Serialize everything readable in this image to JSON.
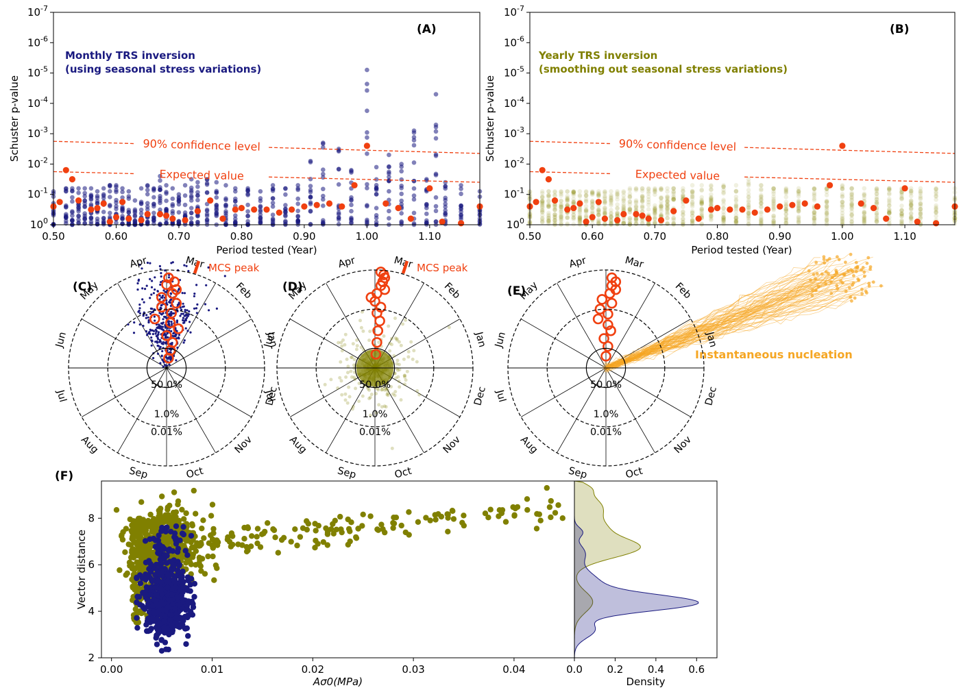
{
  "figure": {
    "panel_labels": [
      "(A)",
      "(B)",
      "(C)",
      "(D)",
      "(E)",
      "(F)"
    ]
  },
  "colors": {
    "monthly": "#1a1a80",
    "yearly": "#808000",
    "observed": "#f04010",
    "mcs": "#f04010",
    "nucleation": "#f5a623"
  },
  "chart_data": [
    {
      "id": "A",
      "type": "scatter",
      "annotation": "Monthly TRS inversion\n(using seasonal stress variations)",
      "xlabel": "Period tested (Year)",
      "ylabel": "Schuster p-value",
      "xlim": [
        0.5,
        1.18
      ],
      "ylim": [
        1,
        1e-07
      ],
      "y_scale": "log-inverted",
      "x_ticks": [
        "0.50",
        "0.60",
        "0.70",
        "0.80",
        "0.90",
        "1.00",
        "1.10"
      ],
      "y_ticks": [
        "10^0",
        "10^-1",
        "10^-2",
        "10^-3",
        "10^-4",
        "10^-5",
        "10^-6",
        "10^-7"
      ],
      "lines": [
        {
          "label": "90% confidence level",
          "x": [
            0.5,
            1.18
          ],
          "log10_p": [
            -2.75,
            -2.35
          ]
        },
        {
          "label": "Expected value",
          "x": [
            0.5,
            1.18
          ],
          "log10_p": [
            -1.75,
            -1.4
          ]
        }
      ],
      "series": [
        {
          "color": "monthly",
          "periods": [
            0.5,
            0.52,
            0.53,
            0.54,
            0.55,
            0.56,
            0.57,
            0.58,
            0.59,
            0.6,
            0.61,
            0.62,
            0.63,
            0.64,
            0.65,
            0.66,
            0.67,
            0.68,
            0.69,
            0.7,
            0.71,
            0.72,
            0.73,
            0.745,
            0.76,
            0.775,
            0.79,
            0.81,
            0.83,
            0.85,
            0.87,
            0.89,
            0.91,
            0.93,
            0.955,
            0.975,
            1.0,
            1.015,
            1.035,
            1.055,
            1.075,
            1.095,
            1.11,
            1.125,
            1.15,
            1.18
          ],
          "max_log10_p": [
            -1.1,
            -1.2,
            -1.2,
            -1.2,
            -1.2,
            -1.2,
            -1.1,
            -1.2,
            -1.3,
            -1.3,
            -1.2,
            -1.1,
            -0.8,
            -1.2,
            -1.3,
            -1.2,
            -1.6,
            -1.3,
            -1.2,
            -1.0,
            -1.3,
            -1.5,
            -1.4,
            -1.5,
            -1.4,
            -1.3,
            -1.2,
            -1.2,
            -1.1,
            -1.3,
            -1.2,
            -1.3,
            -2.1,
            -2.7,
            -2.5,
            -1.8,
            -5.1,
            -1.9,
            -2.3,
            -2.0,
            -3.1,
            -1.5,
            -4.3,
            -1.4,
            -1.3,
            -1.1
          ]
        },
        {
          "name": "observed",
          "color": "observed",
          "periods": [
            0.5,
            0.51,
            0.52,
            0.53,
            0.54,
            0.56,
            0.57,
            0.58,
            0.59,
            0.6,
            0.61,
            0.62,
            0.64,
            0.65,
            0.67,
            0.68,
            0.69,
            0.71,
            0.73,
            0.75,
            0.77,
            0.79,
            0.8,
            0.82,
            0.84,
            0.86,
            0.88,
            0.9,
            0.92,
            0.94,
            0.96,
            0.98,
            1.0,
            1.03,
            1.05,
            1.07,
            1.1,
            1.12,
            1.15,
            1.18
          ],
          "log10_p": [
            -0.6,
            -0.75,
            -1.8,
            -1.5,
            -0.8,
            -0.5,
            -0.55,
            -0.7,
            -0.1,
            -0.25,
            -0.75,
            -0.2,
            -0.15,
            -0.35,
            -0.35,
            -0.3,
            -0.2,
            -0.15,
            -0.45,
            -0.8,
            -0.2,
            -0.5,
            -0.55,
            -0.5,
            -0.5,
            -0.4,
            -0.5,
            -0.6,
            -0.65,
            -0.7,
            -0.6,
            -1.3,
            -2.6,
            -0.7,
            -0.55,
            -0.2,
            -1.2,
            -0.1,
            -0.05,
            -0.6
          ]
        }
      ]
    },
    {
      "id": "B",
      "type": "scatter",
      "annotation": "Yearly TRS inversion\n(smoothing out seasonal stress variations)",
      "xlabel": "Period tested (Year)",
      "ylabel": "Schuster p-value",
      "xlim": [
        0.5,
        1.18
      ],
      "ylim": [
        1,
        1e-07
      ],
      "y_scale": "log-inverted",
      "x_ticks": [
        "0.50",
        "0.60",
        "0.70",
        "0.80",
        "0.90",
        "1.00",
        "1.10"
      ],
      "y_ticks": [
        "10^0",
        "10^-1",
        "10^-2",
        "10^-3",
        "10^-4",
        "10^-5",
        "10^-6",
        "10^-7"
      ],
      "lines": [
        {
          "label": "90% confidence level",
          "x": [
            0.5,
            1.18
          ],
          "log10_p": [
            -2.75,
            -2.35
          ]
        },
        {
          "label": "Expected value",
          "x": [
            0.5,
            1.18
          ],
          "log10_p": [
            -1.75,
            -1.4
          ]
        }
      ],
      "series": [
        {
          "color": "yearly",
          "periods": [
            0.5,
            0.52,
            0.53,
            0.54,
            0.55,
            0.56,
            0.57,
            0.58,
            0.59,
            0.6,
            0.61,
            0.62,
            0.63,
            0.64,
            0.65,
            0.66,
            0.67,
            0.68,
            0.69,
            0.7,
            0.71,
            0.72,
            0.73,
            0.745,
            0.76,
            0.775,
            0.79,
            0.81,
            0.83,
            0.85,
            0.87,
            0.89,
            0.91,
            0.93,
            0.955,
            0.975,
            1.0,
            1.015,
            1.035,
            1.055,
            1.075,
            1.095,
            1.11,
            1.125,
            1.15,
            1.18
          ],
          "max_log10_p": [
            -1.1,
            -1.1,
            -1.1,
            -1.1,
            -1.1,
            -1.1,
            -1.1,
            -1.1,
            -1.1,
            -1.1,
            -1.1,
            -1.1,
            -1.1,
            -1.1,
            -1.1,
            -1.2,
            -1.2,
            -1.2,
            -1.2,
            -1.2,
            -1.2,
            -1.2,
            -1.2,
            -1.2,
            -1.3,
            -1.3,
            -1.3,
            -1.3,
            -1.3,
            -1.5,
            -1.3,
            -1.2,
            -1.2,
            -1.2,
            -1.2,
            -1.2,
            -1.3,
            -1.2,
            -1.2,
            -1.2,
            -1.2,
            -1.2,
            -1.2,
            -1.2,
            -1.2,
            -1.2
          ]
        },
        {
          "name": "observed",
          "color": "observed",
          "periods": [
            0.5,
            0.51,
            0.52,
            0.53,
            0.54,
            0.56,
            0.57,
            0.58,
            0.59,
            0.6,
            0.61,
            0.62,
            0.64,
            0.65,
            0.67,
            0.68,
            0.69,
            0.71,
            0.73,
            0.75,
            0.77,
            0.79,
            0.8,
            0.82,
            0.84,
            0.86,
            0.88,
            0.9,
            0.92,
            0.94,
            0.96,
            0.98,
            1.0,
            1.03,
            1.05,
            1.07,
            1.1,
            1.12,
            1.15,
            1.18
          ],
          "log10_p": [
            -0.6,
            -0.75,
            -1.8,
            -1.5,
            -0.8,
            -0.5,
            -0.55,
            -0.7,
            -0.1,
            -0.25,
            -0.75,
            -0.2,
            -0.15,
            -0.35,
            -0.35,
            -0.3,
            -0.2,
            -0.15,
            -0.45,
            -0.8,
            -0.2,
            -0.5,
            -0.55,
            -0.5,
            -0.5,
            -0.4,
            -0.5,
            -0.6,
            -0.65,
            -0.7,
            -0.6,
            -1.3,
            -2.6,
            -0.7,
            -0.55,
            -0.2,
            -1.2,
            -0.1,
            -0.05,
            -0.6
          ]
        }
      ]
    },
    {
      "id": "C",
      "type": "polar",
      "months": [
        "Mar",
        "Feb",
        "Jan",
        "Dec",
        "Nov",
        "Oct",
        "Sep",
        "Aug",
        "Jul",
        "Jun",
        "May",
        "Apr"
      ],
      "ring_labels": [
        "50.0%",
        "1.0%",
        "0.01%"
      ],
      "annotation": "MCS peak",
      "scatter_color": "monthly",
      "red_circles": [
        [
          0.92,
          0.02
        ],
        [
          0.88,
          0.08
        ],
        [
          0.85,
          0.0
        ],
        [
          0.8,
          0.1
        ],
        [
          0.76,
          0.06
        ],
        [
          0.72,
          -0.05
        ],
        [
          0.66,
          0.1
        ],
        [
          0.62,
          -0.05
        ],
        [
          0.56,
          0.05
        ],
        [
          0.5,
          -0.12
        ],
        [
          0.46,
          0.04
        ],
        [
          0.4,
          0.12
        ],
        [
          0.33,
          0.0
        ],
        [
          0.26,
          0.06
        ],
        [
          0.18,
          0.04
        ],
        [
          0.1,
          0.02
        ]
      ]
    },
    {
      "id": "D",
      "type": "polar",
      "months": [
        "Mar",
        "Feb",
        "Jan",
        "Dec",
        "Nov",
        "Oct",
        "Sep",
        "Aug",
        "Jul",
        "Jun",
        "May",
        "Apr"
      ],
      "ring_labels": [
        "50.0%",
        "1.0%",
        "0.01%"
      ],
      "annotation": "MCS peak",
      "scatter_color": "yearly",
      "red_circles": [
        [
          0.98,
          0.06
        ],
        [
          0.95,
          0.09
        ],
        [
          0.92,
          0.1
        ],
        [
          0.88,
          0.08
        ],
        [
          0.84,
          0.06
        ],
        [
          0.8,
          0.1
        ],
        [
          0.76,
          0.02
        ],
        [
          0.72,
          -0.04
        ],
        [
          0.68,
          0.0
        ],
        [
          0.62,
          0.06
        ],
        [
          0.56,
          0.02
        ],
        [
          0.48,
          0.05
        ],
        [
          0.38,
          0.03
        ],
        [
          0.26,
          0.02
        ],
        [
          0.14,
          0.01
        ]
      ]
    },
    {
      "id": "E",
      "type": "polar",
      "months": [
        "Mar",
        "Feb",
        "Jan",
        "Dec",
        "Nov",
        "Oct",
        "Sep",
        "Aug",
        "Jul",
        "Jun",
        "May",
        "Apr"
      ],
      "ring_labels": [
        "50.0%",
        "1.0%",
        "0.01%"
      ],
      "annotation": "Instantaneous nucleation",
      "red_circles": [
        [
          0.92,
          0.06
        ],
        [
          0.88,
          0.1
        ],
        [
          0.84,
          0.06
        ],
        [
          0.8,
          0.1
        ],
        [
          0.76,
          0.04
        ],
        [
          0.7,
          -0.04
        ],
        [
          0.66,
          0.06
        ],
        [
          0.6,
          -0.06
        ],
        [
          0.55,
          0.02
        ],
        [
          0.5,
          -0.08
        ],
        [
          0.44,
          0.02
        ],
        [
          0.38,
          0.05
        ],
        [
          0.3,
          -0.02
        ],
        [
          0.22,
          0.02
        ],
        [
          0.12,
          0.0
        ]
      ]
    },
    {
      "id": "F",
      "type": "scatter",
      "xlabel": "Aσ0(MPa)",
      "ylabel": "Vector distance",
      "xlim": [
        -0.001,
        0.046
      ],
      "ylim": [
        2,
        9.6
      ],
      "x_ticks": [
        "0.00",
        "0.01",
        "0.02",
        "0.03",
        "0.04"
      ],
      "y_ticks": [
        "2",
        "4",
        "6",
        "8"
      ],
      "series": [
        {
          "color": "yearly",
          "center": [
            0.006,
            7.0
          ],
          "spread": [
            0.003,
            0.7
          ],
          "tail_to": [
            0.045,
            8.4
          ]
        },
        {
          "color": "monthly",
          "center": [
            0.0055,
            4.5
          ],
          "spread": [
            0.0013,
            0.8
          ]
        }
      ]
    },
    {
      "id": "F-density",
      "type": "area",
      "xlabel": "Density",
      "xlim": [
        0,
        0.7
      ],
      "x_ticks": [
        "0.0",
        "0.2",
        "0.4",
        "0.6"
      ],
      "series": [
        {
          "color": "yearly",
          "peak_y": 6.7,
          "peak_density": 0.33
        },
        {
          "color": "monthly",
          "peak_y": 4.3,
          "peak_density": 0.63
        }
      ]
    }
  ]
}
